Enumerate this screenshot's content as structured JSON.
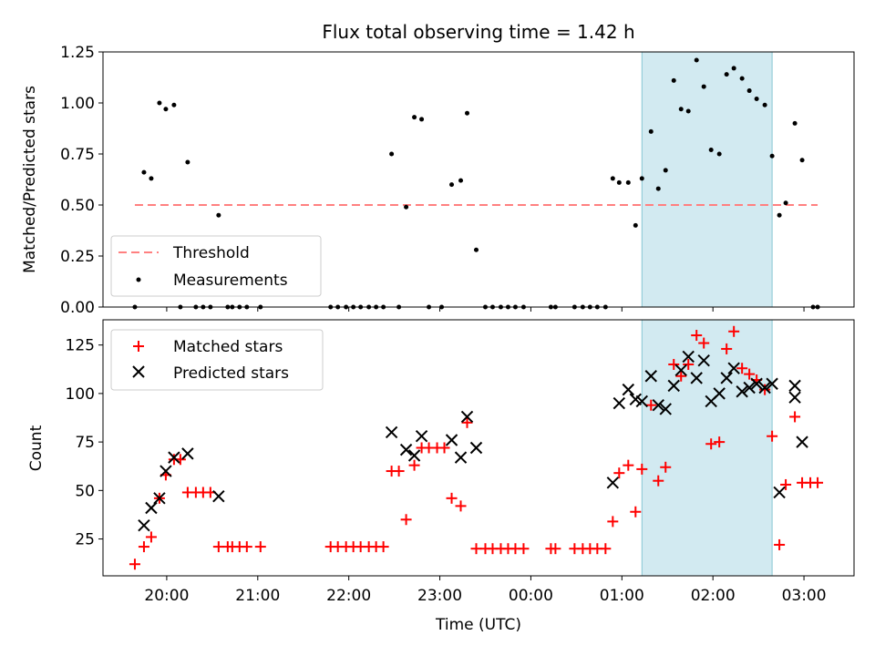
{
  "chart_data": [
    {
      "type": "scatter",
      "title": "Flux total observing time = 1.42 h",
      "xlabel": "",
      "ylabel": "Matched/Predicted stars",
      "ylim": [
        0,
        1.25
      ],
      "yticks": [
        "0.00",
        "0.25",
        "0.50",
        "0.75",
        "1.00",
        "1.25"
      ],
      "xlim_hours": [
        19.3,
        27.55
      ],
      "shaded_region_hours": [
        25.22,
        26.65
      ],
      "shaded_color": "#add8e6",
      "grid": false,
      "legend_position": "lower-left",
      "threshold": {
        "name": "Threshold",
        "value": 0.5,
        "x_range_hours": [
          19.65,
          27.15
        ],
        "color": "#ff8080",
        "style": "dashed"
      },
      "series": [
        {
          "name": "Measurements",
          "color": "#000000",
          "marker": "dot",
          "points": [
            [
              19.65,
              0.0
            ],
            [
              19.75,
              0.66
            ],
            [
              19.83,
              0.63
            ],
            [
              19.92,
              1.0
            ],
            [
              19.99,
              0.97
            ],
            [
              20.08,
              0.99
            ],
            [
              20.15,
              0.0
            ],
            [
              20.23,
              0.71
            ],
            [
              20.32,
              0.0
            ],
            [
              20.4,
              0.0
            ],
            [
              20.48,
              0.0
            ],
            [
              20.57,
              0.45
            ],
            [
              20.67,
              0.0
            ],
            [
              20.72,
              0.0
            ],
            [
              20.8,
              0.0
            ],
            [
              20.88,
              0.0
            ],
            [
              21.03,
              0.0
            ],
            [
              21.8,
              0.0
            ],
            [
              21.88,
              0.0
            ],
            [
              21.97,
              0.0
            ],
            [
              22.05,
              0.0
            ],
            [
              22.13,
              0.0
            ],
            [
              22.22,
              0.0
            ],
            [
              22.3,
              0.0
            ],
            [
              22.38,
              0.0
            ],
            [
              22.47,
              0.75
            ],
            [
              22.55,
              0.0
            ],
            [
              22.63,
              0.49
            ],
            [
              22.72,
              0.93
            ],
            [
              22.8,
              0.92
            ],
            [
              22.88,
              0.0
            ],
            [
              23.02,
              0.0
            ],
            [
              23.13,
              0.6
            ],
            [
              23.23,
              0.62
            ],
            [
              23.3,
              0.95
            ],
            [
              23.4,
              0.28
            ],
            [
              23.5,
              0.0
            ],
            [
              23.58,
              0.0
            ],
            [
              23.67,
              0.0
            ],
            [
              23.75,
              0.0
            ],
            [
              23.83,
              0.0
            ],
            [
              23.92,
              0.0
            ],
            [
              24.22,
              0.0
            ],
            [
              24.27,
              0.0
            ],
            [
              24.48,
              0.0
            ],
            [
              24.57,
              0.0
            ],
            [
              24.65,
              0.0
            ],
            [
              24.73,
              0.0
            ],
            [
              24.82,
              0.0
            ],
            [
              24.9,
              0.63
            ],
            [
              24.97,
              0.61
            ],
            [
              25.07,
              0.61
            ],
            [
              25.15,
              0.4
            ],
            [
              25.22,
              0.63
            ],
            [
              25.32,
              0.86
            ],
            [
              25.4,
              0.58
            ],
            [
              25.48,
              0.67
            ],
            [
              25.57,
              1.11
            ],
            [
              25.65,
              0.97
            ],
            [
              25.73,
              0.96
            ],
            [
              25.82,
              1.21
            ],
            [
              25.9,
              1.08
            ],
            [
              25.98,
              0.77
            ],
            [
              26.07,
              0.75
            ],
            [
              26.15,
              1.14
            ],
            [
              26.23,
              1.17
            ],
            [
              26.32,
              1.12
            ],
            [
              26.4,
              1.06
            ],
            [
              26.48,
              1.02
            ],
            [
              26.57,
              0.99
            ],
            [
              26.65,
              0.74
            ],
            [
              26.73,
              0.45
            ],
            [
              26.8,
              0.51
            ],
            [
              26.9,
              0.9
            ],
            [
              26.98,
              0.72
            ],
            [
              27.1,
              0.0
            ],
            [
              27.15,
              0.0
            ]
          ]
        }
      ]
    },
    {
      "type": "scatter",
      "title": "",
      "xlabel": "Time (UTC)",
      "ylabel": "Count",
      "ylim": [
        6,
        138
      ],
      "yticks": [
        "25",
        "50",
        "75",
        "100",
        "125"
      ],
      "xlim_hours": [
        19.3,
        27.55
      ],
      "xticks": [
        "20:00",
        "21:00",
        "22:00",
        "23:00",
        "00:00",
        "01:00",
        "02:00",
        "03:00"
      ],
      "shaded_region_hours": [
        25.22,
        26.65
      ],
      "shaded_color": "#add8e6",
      "grid": false,
      "legend_position": "upper-left",
      "series": [
        {
          "name": "Matched stars",
          "color": "#ff0000",
          "marker": "plus",
          "points": [
            [
              19.65,
              12
            ],
            [
              19.75,
              21
            ],
            [
              19.83,
              26
            ],
            [
              19.92,
              46
            ],
            [
              19.99,
              58
            ],
            [
              20.08,
              66
            ],
            [
              20.15,
              66
            ],
            [
              20.23,
              49
            ],
            [
              20.32,
              49
            ],
            [
              20.4,
              49
            ],
            [
              20.48,
              49
            ],
            [
              20.57,
              21
            ],
            [
              20.67,
              21
            ],
            [
              20.72,
              21
            ],
            [
              20.8,
              21
            ],
            [
              20.88,
              21
            ],
            [
              21.03,
              21
            ],
            [
              21.8,
              21
            ],
            [
              21.88,
              21
            ],
            [
              21.97,
              21
            ],
            [
              22.05,
              21
            ],
            [
              22.13,
              21
            ],
            [
              22.22,
              21
            ],
            [
              22.3,
              21
            ],
            [
              22.38,
              21
            ],
            [
              22.47,
              60
            ],
            [
              22.55,
              60
            ],
            [
              22.63,
              35
            ],
            [
              22.72,
              63
            ],
            [
              22.8,
              72
            ],
            [
              22.88,
              72
            ],
            [
              22.97,
              72
            ],
            [
              23.05,
              72
            ],
            [
              23.13,
              46
            ],
            [
              23.23,
              42
            ],
            [
              23.3,
              85
            ],
            [
              23.4,
              20
            ],
            [
              23.5,
              20
            ],
            [
              23.58,
              20
            ],
            [
              23.67,
              20
            ],
            [
              23.75,
              20
            ],
            [
              23.83,
              20
            ],
            [
              23.92,
              20
            ],
            [
              24.22,
              20
            ],
            [
              24.27,
              20
            ],
            [
              24.48,
              20
            ],
            [
              24.57,
              20
            ],
            [
              24.65,
              20
            ],
            [
              24.73,
              20
            ],
            [
              24.82,
              20
            ],
            [
              24.9,
              34
            ],
            [
              24.97,
              59
            ],
            [
              25.07,
              63
            ],
            [
              25.15,
              39
            ],
            [
              25.22,
              61
            ],
            [
              25.32,
              94
            ],
            [
              25.4,
              55
            ],
            [
              25.48,
              62
            ],
            [
              25.57,
              115
            ],
            [
              25.65,
              109
            ],
            [
              25.73,
              115
            ],
            [
              25.82,
              130
            ],
            [
              25.9,
              126
            ],
            [
              25.98,
              74
            ],
            [
              26.07,
              75
            ],
            [
              26.15,
              123
            ],
            [
              26.23,
              132
            ],
            [
              26.32,
              113
            ],
            [
              26.4,
              110
            ],
            [
              26.48,
              107
            ],
            [
              26.57,
              102
            ],
            [
              26.65,
              78
            ],
            [
              26.73,
              22
            ],
            [
              26.8,
              53
            ],
            [
              26.9,
              88
            ],
            [
              26.98,
              54
            ],
            [
              27.07,
              54
            ],
            [
              27.15,
              54
            ]
          ]
        },
        {
          "name": "Predicted stars",
          "color": "#000000",
          "marker": "x",
          "points": [
            [
              19.75,
              32
            ],
            [
              19.83,
              41
            ],
            [
              19.92,
              46
            ],
            [
              19.99,
              60
            ],
            [
              20.08,
              67
            ],
            [
              20.23,
              69
            ],
            [
              20.57,
              47
            ],
            [
              22.47,
              80
            ],
            [
              22.63,
              71
            ],
            [
              22.72,
              68
            ],
            [
              22.8,
              78
            ],
            [
              23.13,
              76
            ],
            [
              23.23,
              67
            ],
            [
              23.3,
              88
            ],
            [
              23.4,
              72
            ],
            [
              24.9,
              54
            ],
            [
              24.97,
              95
            ],
            [
              25.07,
              102
            ],
            [
              25.15,
              97
            ],
            [
              25.22,
              96
            ],
            [
              25.32,
              109
            ],
            [
              25.4,
              94
            ],
            [
              25.48,
              92
            ],
            [
              25.57,
              104
            ],
            [
              25.65,
              112
            ],
            [
              25.73,
              119
            ],
            [
              25.82,
              108
            ],
            [
              25.9,
              117
            ],
            [
              25.98,
              96
            ],
            [
              26.07,
              100
            ],
            [
              26.15,
              108
            ],
            [
              26.23,
              113
            ],
            [
              26.32,
              101
            ],
            [
              26.4,
              103
            ],
            [
              26.48,
              105
            ],
            [
              26.57,
              103
            ],
            [
              26.65,
              105
            ],
            [
              26.73,
              49
            ],
            [
              26.9,
              104
            ],
            [
              26.9,
              98
            ],
            [
              26.98,
              75
            ]
          ]
        }
      ]
    }
  ]
}
